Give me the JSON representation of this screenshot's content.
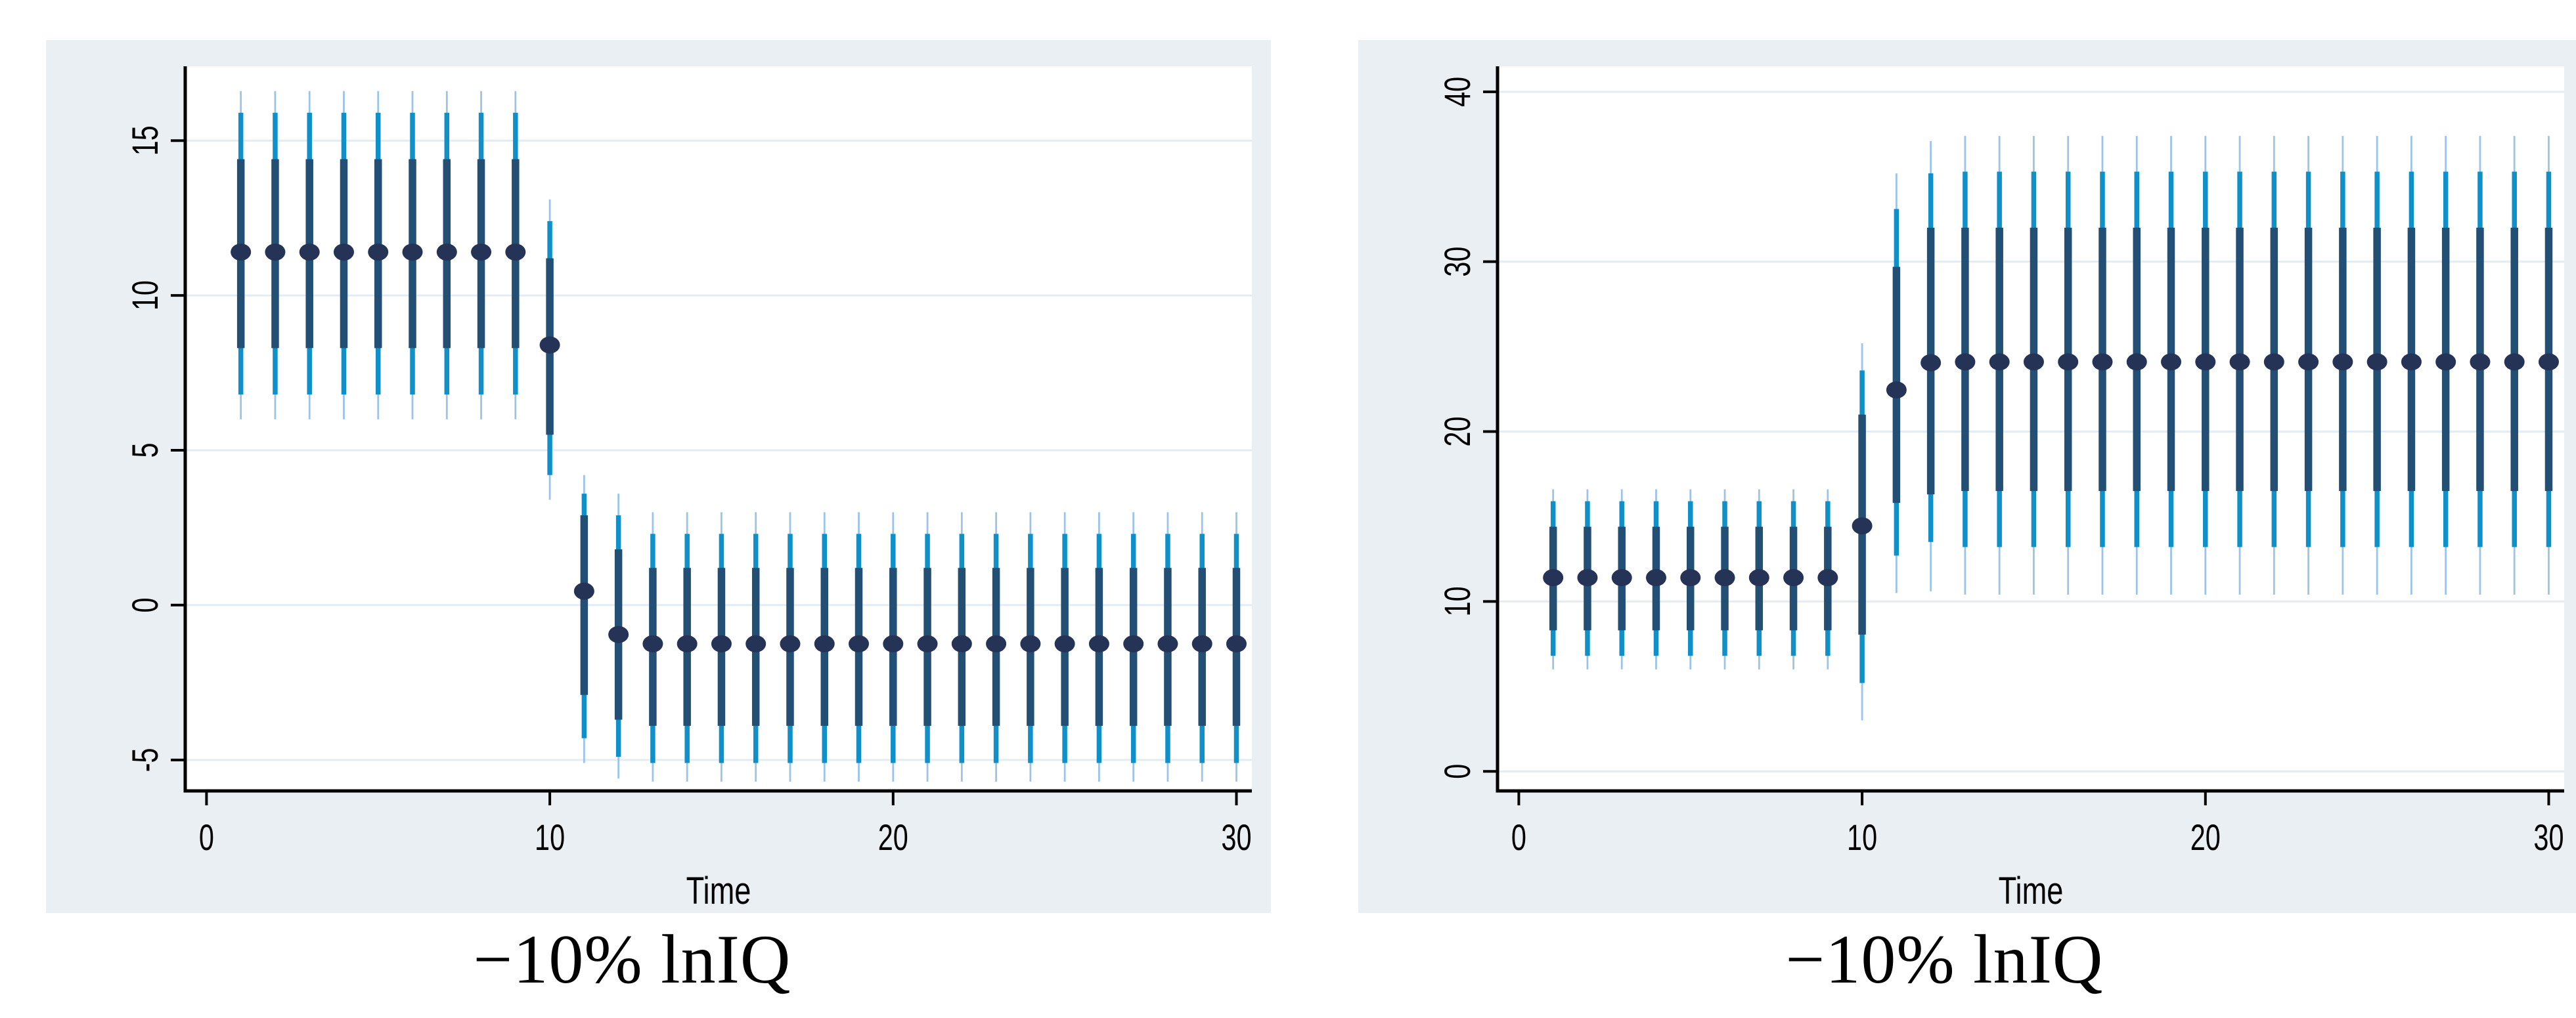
{
  "palette": {
    "page_bg": "#ffffff",
    "panel_bg": "#e9eff3",
    "plot_bg": "#ffffff",
    "gridline": "#e2ecf2",
    "axis": "#000000",
    "tick_label": "#000000",
    "ci_outer": "#9cc4e8",
    "ci_mid": "#1090c8",
    "ci_inner": "#234f75",
    "marker": "#243356"
  },
  "chart_data": [
    {
      "type": "errorbar",
      "caption": "−10% lnIQ",
      "xlabel": "Time",
      "x_ticks": [
        0,
        10,
        20,
        30
      ],
      "x_tick_labels": [
        "0",
        "10",
        "20",
        "30"
      ],
      "y_ticks": [
        -5,
        0,
        5,
        10,
        15
      ],
      "y_tick_labels": [
        "-5",
        "0",
        "5",
        "10",
        "15"
      ],
      "xlim": [
        -0.62,
        30.45
      ],
      "ylim": [
        -6.0,
        17.4
      ],
      "grid": true,
      "legend": false,
      "columns": [
        "t",
        "estimate",
        "inner_lo",
        "inner_hi",
        "mid_lo",
        "mid_hi",
        "outer_lo",
        "outer_hi"
      ],
      "rows": [
        [
          1,
          11.4,
          8.3,
          14.4,
          6.8,
          15.9,
          6.0,
          16.6
        ],
        [
          2,
          11.4,
          8.3,
          14.4,
          6.8,
          15.9,
          6.0,
          16.6
        ],
        [
          3,
          11.4,
          8.3,
          14.4,
          6.8,
          15.9,
          6.0,
          16.6
        ],
        [
          4,
          11.4,
          8.3,
          14.4,
          6.8,
          15.9,
          6.0,
          16.6
        ],
        [
          5,
          11.4,
          8.3,
          14.4,
          6.8,
          15.9,
          6.0,
          16.6
        ],
        [
          6,
          11.4,
          8.3,
          14.4,
          6.8,
          15.9,
          6.0,
          16.6
        ],
        [
          7,
          11.4,
          8.3,
          14.4,
          6.8,
          15.9,
          6.0,
          16.6
        ],
        [
          8,
          11.4,
          8.3,
          14.4,
          6.8,
          15.9,
          6.0,
          16.6
        ],
        [
          9,
          11.4,
          8.3,
          14.4,
          6.8,
          15.9,
          6.0,
          16.6
        ],
        [
          10,
          8.4,
          5.5,
          11.2,
          4.2,
          12.4,
          3.4,
          13.1
        ],
        [
          11,
          0.45,
          -2.9,
          2.9,
          -4.3,
          3.6,
          -5.1,
          4.2
        ],
        [
          12,
          -0.95,
          -3.7,
          1.8,
          -4.9,
          2.9,
          -5.6,
          3.6
        ],
        [
          13,
          -1.25,
          -3.9,
          1.2,
          -5.1,
          2.3,
          -5.7,
          3.0
        ],
        [
          14,
          -1.25,
          -3.9,
          1.2,
          -5.1,
          2.3,
          -5.7,
          3.0
        ],
        [
          15,
          -1.25,
          -3.9,
          1.2,
          -5.1,
          2.3,
          -5.7,
          3.0
        ],
        [
          16,
          -1.25,
          -3.9,
          1.2,
          -5.1,
          2.3,
          -5.7,
          3.0
        ],
        [
          17,
          -1.25,
          -3.9,
          1.2,
          -5.1,
          2.3,
          -5.7,
          3.0
        ],
        [
          18,
          -1.25,
          -3.9,
          1.2,
          -5.1,
          2.3,
          -5.7,
          3.0
        ],
        [
          19,
          -1.25,
          -3.9,
          1.2,
          -5.1,
          2.3,
          -5.7,
          3.0
        ],
        [
          20,
          -1.25,
          -3.9,
          1.2,
          -5.1,
          2.3,
          -5.7,
          3.0
        ],
        [
          21,
          -1.25,
          -3.9,
          1.2,
          -5.1,
          2.3,
          -5.7,
          3.0
        ],
        [
          22,
          -1.25,
          -3.9,
          1.2,
          -5.1,
          2.3,
          -5.7,
          3.0
        ],
        [
          23,
          -1.25,
          -3.9,
          1.2,
          -5.1,
          2.3,
          -5.7,
          3.0
        ],
        [
          24,
          -1.25,
          -3.9,
          1.2,
          -5.1,
          2.3,
          -5.7,
          3.0
        ],
        [
          25,
          -1.25,
          -3.9,
          1.2,
          -5.1,
          2.3,
          -5.7,
          3.0
        ],
        [
          26,
          -1.25,
          -3.9,
          1.2,
          -5.1,
          2.3,
          -5.7,
          3.0
        ],
        [
          27,
          -1.25,
          -3.9,
          1.2,
          -5.1,
          2.3,
          -5.7,
          3.0
        ],
        [
          28,
          -1.25,
          -3.9,
          1.2,
          -5.1,
          2.3,
          -5.7,
          3.0
        ],
        [
          29,
          -1.25,
          -3.9,
          1.2,
          -5.1,
          2.3,
          -5.7,
          3.0
        ],
        [
          30,
          -1.25,
          -3.9,
          1.2,
          -5.1,
          2.3,
          -5.7,
          3.0
        ]
      ]
    },
    {
      "type": "errorbar",
      "caption": "−10% lnIQ",
      "xlabel": "Time",
      "x_ticks": [
        0,
        10,
        20,
        30
      ],
      "x_tick_labels": [
        "0",
        "10",
        "20",
        "30"
      ],
      "y_ticks": [
        0,
        10,
        20,
        30,
        40
      ],
      "y_tick_labels": [
        "0",
        "10",
        "20",
        "30",
        "40"
      ],
      "xlim": [
        -0.62,
        30.45
      ],
      "ylim": [
        -1.15,
        41.5
      ],
      "grid": true,
      "legend": false,
      "columns": [
        "t",
        "estimate",
        "inner_lo",
        "inner_hi",
        "mid_lo",
        "mid_hi",
        "outer_lo",
        "outer_hi"
      ],
      "rows": [
        [
          1,
          11.4,
          8.3,
          14.4,
          6.8,
          15.9,
          6.0,
          16.6
        ],
        [
          2,
          11.4,
          8.3,
          14.4,
          6.8,
          15.9,
          6.0,
          16.6
        ],
        [
          3,
          11.4,
          8.3,
          14.4,
          6.8,
          15.9,
          6.0,
          16.6
        ],
        [
          4,
          11.4,
          8.3,
          14.4,
          6.8,
          15.9,
          6.0,
          16.6
        ],
        [
          5,
          11.4,
          8.3,
          14.4,
          6.8,
          15.9,
          6.0,
          16.6
        ],
        [
          6,
          11.4,
          8.3,
          14.4,
          6.8,
          15.9,
          6.0,
          16.6
        ],
        [
          7,
          11.4,
          8.3,
          14.4,
          6.8,
          15.9,
          6.0,
          16.6
        ],
        [
          8,
          11.4,
          8.3,
          14.4,
          6.8,
          15.9,
          6.0,
          16.6
        ],
        [
          9,
          11.4,
          8.3,
          14.4,
          6.8,
          15.9,
          6.0,
          16.6
        ],
        [
          10,
          14.45,
          8.05,
          21.0,
          5.2,
          23.6,
          3.0,
          25.2
        ],
        [
          11,
          22.45,
          15.8,
          29.7,
          12.7,
          33.1,
          10.5,
          35.2
        ],
        [
          12,
          24.05,
          16.3,
          32.0,
          13.5,
          35.2,
          10.6,
          37.1
        ],
        [
          13,
          24.1,
          16.5,
          32.0,
          13.2,
          35.3,
          10.4,
          37.4
        ],
        [
          14,
          24.1,
          16.5,
          32.0,
          13.2,
          35.3,
          10.4,
          37.4
        ],
        [
          15,
          24.1,
          16.5,
          32.0,
          13.2,
          35.3,
          10.4,
          37.4
        ],
        [
          16,
          24.1,
          16.5,
          32.0,
          13.2,
          35.3,
          10.4,
          37.4
        ],
        [
          17,
          24.1,
          16.5,
          32.0,
          13.2,
          35.3,
          10.4,
          37.4
        ],
        [
          18,
          24.1,
          16.5,
          32.0,
          13.2,
          35.3,
          10.4,
          37.4
        ],
        [
          19,
          24.1,
          16.5,
          32.0,
          13.2,
          35.3,
          10.4,
          37.4
        ],
        [
          20,
          24.1,
          16.5,
          32.0,
          13.2,
          35.3,
          10.4,
          37.4
        ],
        [
          21,
          24.1,
          16.5,
          32.0,
          13.2,
          35.3,
          10.4,
          37.4
        ],
        [
          22,
          24.1,
          16.5,
          32.0,
          13.2,
          35.3,
          10.4,
          37.4
        ],
        [
          23,
          24.1,
          16.5,
          32.0,
          13.2,
          35.3,
          10.4,
          37.4
        ],
        [
          24,
          24.1,
          16.5,
          32.0,
          13.2,
          35.3,
          10.4,
          37.4
        ],
        [
          25,
          24.1,
          16.5,
          32.0,
          13.2,
          35.3,
          10.4,
          37.4
        ],
        [
          26,
          24.1,
          16.5,
          32.0,
          13.2,
          35.3,
          10.4,
          37.4
        ],
        [
          27,
          24.1,
          16.5,
          32.0,
          13.2,
          35.3,
          10.4,
          37.4
        ],
        [
          28,
          24.1,
          16.5,
          32.0,
          13.2,
          35.3,
          10.4,
          37.4
        ],
        [
          29,
          24.1,
          16.5,
          32.0,
          13.2,
          35.3,
          10.4,
          37.4
        ],
        [
          30,
          24.1,
          16.5,
          32.0,
          13.2,
          35.3,
          10.4,
          37.4
        ]
      ]
    }
  ]
}
